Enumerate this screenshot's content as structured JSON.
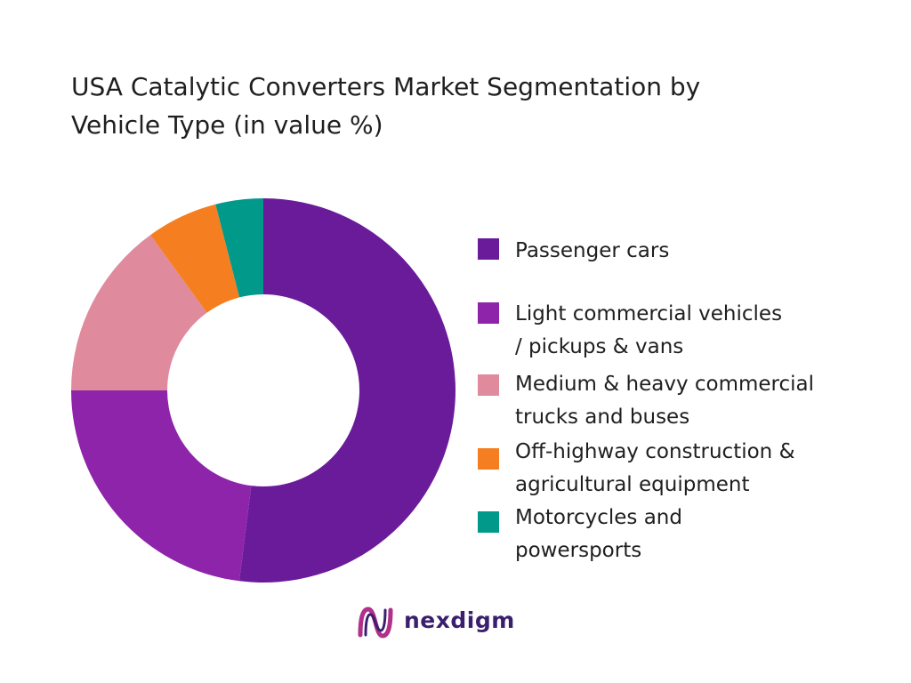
{
  "title_lines": [
    "USA Catalytic Converters Market Segmentation by",
    "Vehicle Type (in value %)"
  ],
  "chart_data": {
    "type": "pie",
    "title": "USA Catalytic Converters Market Segmentation by Vehicle Type (in value %)",
    "variant": "donut",
    "legend_position": "right",
    "categories": [
      "Passenger cars",
      "Light commercial vehicles / pickups & vans",
      "Medium & heavy commercial trucks and buses",
      "Off-highway construction & agricultural equipment",
      "Motorcycles and powersports"
    ],
    "values": [
      52,
      23,
      15,
      6,
      4
    ],
    "colors": [
      "#6a1b9a",
      "#8e24aa",
      "#e08a9e",
      "#f57f20",
      "#00998a"
    ]
  },
  "legend": [
    {
      "lines": [
        "Passenger cars"
      ],
      "color": "#6a1b9a"
    },
    {
      "lines": [
        "Light commercial vehicles",
        "/ pickups & vans"
      ],
      "color": "#8e24aa"
    },
    {
      "lines": [
        "Medium & heavy commercial",
        "trucks and buses"
      ],
      "color": "#e08a9e"
    },
    {
      "lines": [
        "Off-highway construction &",
        "agricultural equipment"
      ],
      "color": "#f57f20"
    },
    {
      "lines": [
        "Motorcycles and",
        "powersports"
      ],
      "color": "#00998a"
    }
  ],
  "brand": {
    "name": "nexdigm",
    "icon": "nexdigm-logo-icon",
    "colors": {
      "dark": "#3b1f6e",
      "accent": "#b0308a"
    }
  }
}
